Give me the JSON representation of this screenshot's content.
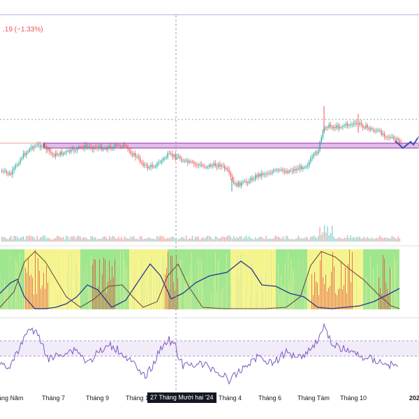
{
  "header": {
    "price_change_text": ".19 (−1.33%)"
  },
  "crosshair": {
    "date_label": "27 Tháng Mười hai '24"
  },
  "colors": {
    "up": "#26a69a",
    "down": "#ef5350",
    "band": "#e1bee7",
    "band_border": "#9c27b0",
    "trend": "#3f51b5",
    "rsi": "#7e57c2",
    "rsi_band": "#ede7f6",
    "zone_green": "#8ee37a",
    "zone_yellow": "#f2f27a",
    "osc_blue": "#283593",
    "osc_dark": "#6d4c41"
  },
  "chart_data": {
    "type": "candlestick",
    "x_tick_labels": [
      "háng Năm",
      "Tháng 7",
      "Tháng 9",
      "Tháng 1",
      "Tháng 4",
      "Tháng 6",
      "Tháng Tám",
      "Tháng 10",
      "202"
    ],
    "support_zone": {
      "note": "horizontal resistance/support band drawn across price panel"
    },
    "panels": [
      "price",
      "volume",
      "oscillator",
      "rsi"
    ]
  }
}
